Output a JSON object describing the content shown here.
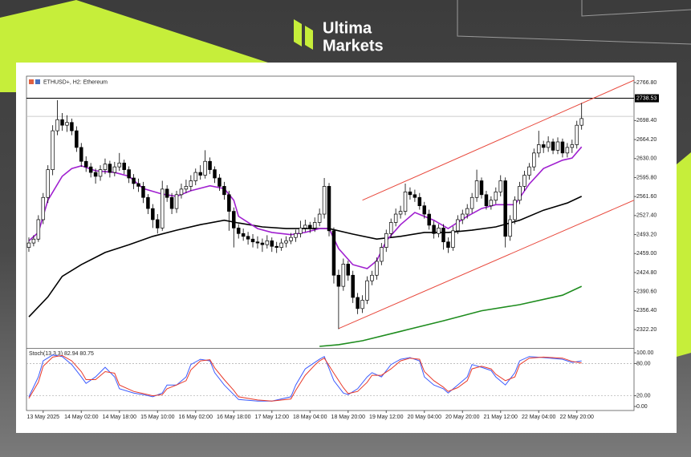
{
  "brand": {
    "line1": "Ultima",
    "line2": "Markets"
  },
  "chart_data": {
    "type": "candlestick",
    "title": "ETHUSD+, H2:  Ethereum",
    "xlim": [
      -0.5,
      127
    ],
    "xticks": [
      {
        "value": 3,
        "label": "13 May 2025"
      },
      {
        "value": 11,
        "label": "14 May 02:00"
      },
      {
        "value": 19,
        "label": "14 May 18:00"
      },
      {
        "value": 27,
        "label": "15 May 10:00"
      },
      {
        "value": 35,
        "label": "16 May 02:00"
      },
      {
        "value": 43,
        "label": "16 May 18:00"
      },
      {
        "value": 51,
        "label": "17 May 12:00"
      },
      {
        "value": 59,
        "label": "18 May 04:00"
      },
      {
        "value": 67,
        "label": "18 May 20:00"
      },
      {
        "value": 75,
        "label": "19 May 12:00"
      },
      {
        "value": 83,
        "label": "20 May 04:00"
      },
      {
        "value": 91,
        "label": "20 May 20:00"
      },
      {
        "value": 99,
        "label": "21 May 12:00"
      },
      {
        "value": 107,
        "label": "22 May 04:00"
      },
      {
        "value": 115,
        "label": "22 May 20:00"
      }
    ],
    "ylim": [
      2290.5,
      2778.3
    ],
    "yticks": [
      {
        "value": 2766.8,
        "label": "2766.80"
      },
      {
        "value": 2698.4,
        "label": "2698.40"
      },
      {
        "value": 2664.2,
        "label": "2664.20"
      },
      {
        "value": 2630,
        "label": "2630.00"
      },
      {
        "value": 2595.8,
        "label": "2595.80"
      },
      {
        "value": 2561.6,
        "label": "2561.60"
      },
      {
        "value": 2527.4,
        "label": "2527.40"
      },
      {
        "value": 2493.2,
        "label": "2493.20"
      },
      {
        "value": 2459,
        "label": "2459.00"
      },
      {
        "value": 2424.8,
        "label": "2424.80"
      },
      {
        "value": 2390.6,
        "label": "2390.60"
      },
      {
        "value": 2356.4,
        "label": "2356.40"
      },
      {
        "value": 2322.2,
        "label": "2322.20"
      }
    ],
    "candles": [
      [
        2470,
        2488,
        2462,
        2478
      ],
      [
        2478,
        2492,
        2472,
        2485
      ],
      [
        2485,
        2528,
        2480,
        2520
      ],
      [
        2520,
        2568,
        2512,
        2560
      ],
      [
        2560,
        2618,
        2550,
        2610
      ],
      [
        2610,
        2690,
        2600,
        2680
      ],
      [
        2680,
        2735,
        2672,
        2700
      ],
      [
        2700,
        2712,
        2680,
        2690
      ],
      [
        2690,
        2708,
        2678,
        2695
      ],
      [
        2695,
        2702,
        2672,
        2680
      ],
      [
        2680,
        2688,
        2642,
        2650
      ],
      [
        2650,
        2658,
        2615,
        2625
      ],
      [
        2625,
        2634,
        2606,
        2615
      ],
      [
        2615,
        2622,
        2596,
        2605
      ],
      [
        2605,
        2612,
        2585,
        2598
      ],
      [
        2598,
        2618,
        2590,
        2610
      ],
      [
        2610,
        2630,
        2602,
        2620
      ],
      [
        2620,
        2626,
        2596,
        2605
      ],
      [
        2605,
        2624,
        2598,
        2615
      ],
      [
        2615,
        2640,
        2608,
        2622
      ],
      [
        2622,
        2628,
        2602,
        2610
      ],
      [
        2610,
        2616,
        2586,
        2595
      ],
      [
        2595,
        2602,
        2575,
        2585
      ],
      [
        2585,
        2594,
        2570,
        2580
      ],
      [
        2580,
        2588,
        2550,
        2560
      ],
      [
        2560,
        2566,
        2530,
        2540
      ],
      [
        2540,
        2548,
        2505,
        2520
      ],
      [
        2520,
        2530,
        2495,
        2505
      ],
      [
        2505,
        2590,
        2500,
        2575
      ],
      [
        2575,
        2582,
        2552,
        2560
      ],
      [
        2560,
        2568,
        2530,
        2540
      ],
      [
        2540,
        2572,
        2532,
        2565
      ],
      [
        2565,
        2585,
        2558,
        2575
      ],
      [
        2575,
        2592,
        2568,
        2580
      ],
      [
        2580,
        2600,
        2572,
        2590
      ],
      [
        2590,
        2612,
        2582,
        2605
      ],
      [
        2605,
        2618,
        2592,
        2600
      ],
      [
        2600,
        2645,
        2594,
        2625
      ],
      [
        2625,
        2632,
        2602,
        2610
      ],
      [
        2610,
        2616,
        2586,
        2595
      ],
      [
        2595,
        2602,
        2572,
        2580
      ],
      [
        2580,
        2588,
        2556,
        2565
      ],
      [
        2565,
        2572,
        2500,
        2535
      ],
      [
        2535,
        2542,
        2470,
        2505
      ],
      [
        2505,
        2512,
        2486,
        2495
      ],
      [
        2495,
        2504,
        2482,
        2490
      ],
      [
        2490,
        2498,
        2475,
        2485
      ],
      [
        2485,
        2494,
        2470,
        2480
      ],
      [
        2480,
        2490,
        2468,
        2478
      ],
      [
        2478,
        2486,
        2462,
        2475
      ],
      [
        2475,
        2492,
        2468,
        2482
      ],
      [
        2482,
        2488,
        2462,
        2472
      ],
      [
        2472,
        2480,
        2460,
        2470
      ],
      [
        2470,
        2486,
        2464,
        2478
      ],
      [
        2478,
        2490,
        2470,
        2482
      ],
      [
        2482,
        2496,
        2476,
        2488
      ],
      [
        2488,
        2502,
        2480,
        2495
      ],
      [
        2495,
        2518,
        2488,
        2505
      ],
      [
        2505,
        2520,
        2498,
        2510
      ],
      [
        2510,
        2516,
        2496,
        2505
      ],
      [
        2505,
        2524,
        2498,
        2515
      ],
      [
        2515,
        2540,
        2508,
        2530
      ],
      [
        2530,
        2595,
        2522,
        2580
      ],
      [
        2580,
        2586,
        2490,
        2500
      ],
      [
        2500,
        2506,
        2405,
        2420
      ],
      [
        2420,
        2430,
        2323,
        2400
      ],
      [
        2400,
        2450,
        2392,
        2440
      ],
      [
        2440,
        2446,
        2410,
        2420
      ],
      [
        2420,
        2428,
        2370,
        2380
      ],
      [
        2380,
        2388,
        2350,
        2360
      ],
      [
        2360,
        2384,
        2352,
        2375
      ],
      [
        2375,
        2418,
        2368,
        2410
      ],
      [
        2410,
        2428,
        2402,
        2420
      ],
      [
        2420,
        2452,
        2412,
        2445
      ],
      [
        2445,
        2478,
        2438,
        2470
      ],
      [
        2470,
        2502,
        2462,
        2495
      ],
      [
        2495,
        2522,
        2488,
        2515
      ],
      [
        2515,
        2540,
        2508,
        2530
      ],
      [
        2530,
        2545,
        2522,
        2535
      ],
      [
        2535,
        2585,
        2528,
        2570
      ],
      [
        2570,
        2578,
        2556,
        2565
      ],
      [
        2565,
        2574,
        2552,
        2560
      ],
      [
        2560,
        2568,
        2538,
        2545
      ],
      [
        2545,
        2552,
        2522,
        2530
      ],
      [
        2530,
        2538,
        2502,
        2510
      ],
      [
        2510,
        2518,
        2486,
        2495
      ],
      [
        2495,
        2512,
        2488,
        2505
      ],
      [
        2505,
        2512,
        2466,
        2480
      ],
      [
        2480,
        2488,
        2460,
        2470
      ],
      [
        2470,
        2508,
        2464,
        2500
      ],
      [
        2500,
        2528,
        2494,
        2520
      ],
      [
        2520,
        2538,
        2512,
        2530
      ],
      [
        2530,
        2548,
        2522,
        2540
      ],
      [
        2540,
        2568,
        2532,
        2560
      ],
      [
        2560,
        2610,
        2552,
        2590
      ],
      [
        2590,
        2596,
        2558,
        2565
      ],
      [
        2565,
        2572,
        2538,
        2545
      ],
      [
        2545,
        2562,
        2538,
        2555
      ],
      [
        2555,
        2578,
        2548,
        2570
      ],
      [
        2570,
        2600,
        2562,
        2590
      ],
      [
        2590,
        2596,
        2470,
        2490
      ],
      [
        2490,
        2528,
        2482,
        2520
      ],
      [
        2520,
        2562,
        2512,
        2555
      ],
      [
        2555,
        2588,
        2548,
        2580
      ],
      [
        2580,
        2608,
        2572,
        2600
      ],
      [
        2600,
        2622,
        2592,
        2615
      ],
      [
        2615,
        2648,
        2608,
        2640
      ],
      [
        2640,
        2680,
        2632,
        2655
      ],
      [
        2655,
        2662,
        2640,
        2650
      ],
      [
        2650,
        2670,
        2642,
        2660
      ],
      [
        2660,
        2666,
        2638,
        2645
      ],
      [
        2645,
        2668,
        2638,
        2660
      ],
      [
        2660,
        2666,
        2632,
        2640
      ],
      [
        2640,
        2658,
        2632,
        2650
      ],
      [
        2650,
        2664,
        2640,
        2655
      ],
      [
        2655,
        2698,
        2648,
        2690
      ],
      [
        2690,
        2730,
        2682,
        2702
      ]
    ],
    "bull_color": "#ffffff",
    "bear_color": "#000000",
    "overlays": [
      {
        "color": "#000000",
        "x": [
          0,
          4,
          7,
          11,
          16,
          21,
          26,
          31,
          36,
          41,
          44,
          49,
          54,
          59,
          63,
          68,
          73,
          78,
          83,
          88,
          93,
          98,
          103,
          108,
          113,
          116
        ],
        "values": [
          2345,
          2381,
          2418,
          2439,
          2461,
          2475,
          2490,
          2501,
          2511,
          2519,
          2514,
          2507,
          2504,
          2504,
          2504,
          2494,
          2485,
          2490,
          2497,
          2497,
          2501,
          2507,
          2519,
          2537,
          2550,
          2562
        ]
      },
      {
        "color": "#1e8c1e",
        "x": [
          61,
          65,
          70,
          78,
          87,
          95,
          103,
          112,
          116
        ],
        "values": [
          2292,
          2295,
          2302,
          2319,
          2338,
          2356,
          2367,
          2384,
          2400
        ]
      },
      {
        "color": "#a020d0",
        "x": [
          0,
          2,
          4,
          7,
          9,
          11,
          14,
          18,
          21,
          24,
          28,
          31,
          34,
          38,
          41,
          43,
          44,
          48,
          51,
          55,
          58,
          61,
          63,
          65,
          68,
          71,
          73,
          75,
          78,
          81,
          85,
          88,
          92,
          95,
          98,
          102,
          105,
          108,
          112,
          114,
          116
        ],
        "values": [
          2482,
          2497,
          2555,
          2598,
          2612,
          2617,
          2608,
          2605,
          2598,
          2576,
          2566,
          2562,
          2572,
          2581,
          2576,
          2555,
          2526,
          2504,
          2497,
          2493,
          2497,
          2504,
          2504,
          2468,
          2439,
          2432,
          2446,
          2482,
          2511,
          2533,
          2519,
          2504,
          2526,
          2540,
          2547,
          2547,
          2584,
          2612,
          2627,
          2631,
          2651
        ]
      }
    ],
    "trendlines": [
      {
        "color": "#e8483c",
        "x": [
          70,
          127
        ],
        "values": [
          2555,
          2771
        ]
      },
      {
        "color": "#e8483c",
        "x": [
          65,
          127
        ],
        "values": [
          2324,
          2555
        ]
      }
    ],
    "hlines": [
      {
        "value": 2738.53,
        "color": "#000000",
        "tag": true
      },
      {
        "value": 2706,
        "color": "#bdbdbd",
        "tag": false
      }
    ],
    "indicator": {
      "title": "Stoch(13,3,3) 82.94 80.75",
      "ylim": [
        -7.5,
        106
      ],
      "yticks": [
        {
          "value": 100,
          "label": "100.00"
        },
        {
          "value": 80,
          "label": "80.00"
        },
        {
          "value": 20,
          "label": "20.00"
        },
        {
          "value": 0,
          "label": "0.00"
        }
      ],
      "levels": [
        80,
        20
      ],
      "series": [
        {
          "color": "#3b5bff",
          "x": [
            0,
            2,
            3,
            5,
            7,
            9,
            11,
            12,
            14,
            16,
            18,
            19,
            22,
            24,
            26,
            28,
            29,
            31,
            33,
            34,
            36,
            38,
            39,
            41,
            43,
            44,
            48,
            51,
            55,
            56,
            58,
            60,
            61,
            62,
            64,
            66,
            67,
            69,
            71,
            72,
            74,
            76,
            78,
            80,
            82,
            83,
            85,
            87,
            88,
            90,
            92,
            93,
            95,
            97,
            98,
            100,
            102,
            103,
            105,
            108,
            112,
            114,
            116
          ],
          "values": [
            18,
            55,
            85,
            96,
            93,
            78,
            55,
            43,
            55,
            73,
            55,
            33,
            25,
            22,
            18,
            25,
            40,
            40,
            55,
            78,
            88,
            85,
            63,
            40,
            22,
            13,
            10,
            10,
            18,
            40,
            70,
            82,
            88,
            93,
            48,
            25,
            22,
            33,
            55,
            63,
            55,
            78,
            88,
            91,
            85,
            55,
            40,
            33,
            25,
            40,
            55,
            78,
            73,
            67,
            55,
            40,
            63,
            85,
            93,
            91,
            88,
            82,
            85
          ]
        },
        {
          "color": "#e83a2a",
          "x": [
            0,
            2,
            3,
            5,
            7,
            9,
            11,
            12,
            14,
            16,
            18,
            19,
            22,
            24,
            26,
            28,
            29,
            31,
            33,
            34,
            36,
            38,
            39,
            41,
            43,
            44,
            48,
            51,
            55,
            56,
            58,
            60,
            61,
            62,
            64,
            66,
            67,
            69,
            71,
            72,
            74,
            76,
            78,
            80,
            82,
            83,
            85,
            87,
            88,
            90,
            92,
            93,
            95,
            97,
            98,
            100,
            102,
            103,
            105,
            108,
            112,
            114,
            116
          ],
          "values": [
            15,
            45,
            75,
            92,
            95,
            85,
            65,
            50,
            50,
            65,
            62,
            40,
            28,
            24,
            20,
            22,
            33,
            40,
            48,
            68,
            85,
            87,
            72,
            50,
            30,
            18,
            12,
            10,
            14,
            30,
            58,
            77,
            85,
            90,
            62,
            35,
            24,
            28,
            45,
            58,
            58,
            70,
            85,
            90,
            88,
            65,
            48,
            36,
            28,
            35,
            48,
            70,
            75,
            70,
            60,
            48,
            55,
            78,
            90,
            92,
            90,
            84,
            81
          ]
        }
      ]
    }
  }
}
